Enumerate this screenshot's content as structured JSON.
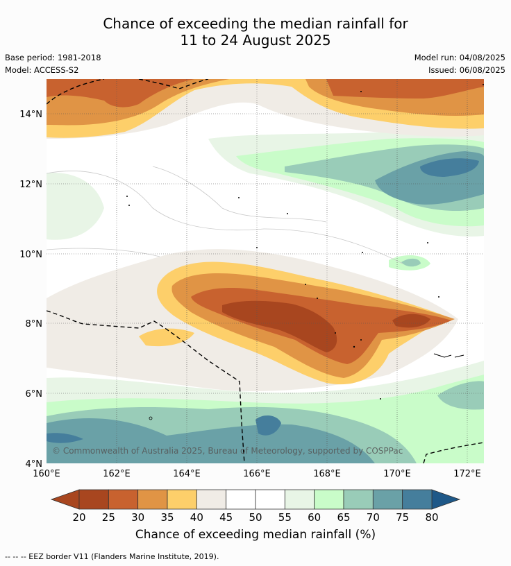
{
  "title_line1": "Chance of exceeding the median rainfall for",
  "title_line2": "11 to 24 August 2025",
  "base_period": "Base period: 1981-2018",
  "model": "Model: ACCESS-S2",
  "model_run": "Model run: 04/08/2025",
  "issued": "Issued: 06/08/2025",
  "copyright": "© Commonwealth of Australia 2025, Bureau of Meteorology, supported by COSPPac",
  "colorbar_label": "Chance of exceeding median rainfall (%)",
  "footnote": "--  --  -- EEZ border V11 (Flanders Marine Institute, 2019).",
  "x_ticks": [
    "160°E",
    "162°E",
    "164°E",
    "166°E",
    "168°E",
    "170°E",
    "172°E"
  ],
  "y_ticks": [
    "14°N",
    "12°N",
    "10°N",
    "8°N",
    "6°N",
    "4°N"
  ],
  "colorbar": {
    "ticks": [
      "20",
      "25",
      "30",
      "35",
      "40",
      "45",
      "50",
      "55",
      "60",
      "65",
      "70",
      "75",
      "80"
    ],
    "colors": [
      "#a8461f",
      "#c8622f",
      "#e09445",
      "#fdcf6a",
      "#f0ece6",
      "#ffffff",
      "#ffffff",
      "#e8f5e6",
      "#c9fcc9",
      "#99ccb8",
      "#6aa1a7",
      "#457e9c"
    ],
    "low_extend_color": "#a8461f",
    "high_extend_color": "#1e5888"
  },
  "chart_data": {
    "type": "map",
    "lon_range": [
      160,
      172.5
    ],
    "lat_range": [
      4,
      15
    ],
    "levels": [
      20,
      25,
      30,
      35,
      40,
      45,
      50,
      55,
      60,
      65,
      70,
      75,
      80
    ]
  }
}
